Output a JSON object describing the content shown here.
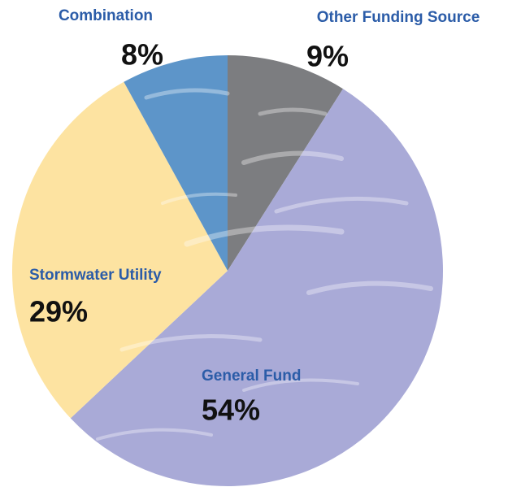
{
  "chart_data": {
    "type": "pie",
    "categories": [
      "Other Funding Source",
      "General Fund",
      "Stormwater Utility",
      "Combination"
    ],
    "values": [
      9,
      54,
      29,
      8
    ],
    "value_labels": [
      "9%",
      "54%",
      "29%",
      "8%"
    ],
    "colors": [
      "#7c7d80",
      "#a9aad7",
      "#fde3a1",
      "#5d95c9"
    ]
  }
}
